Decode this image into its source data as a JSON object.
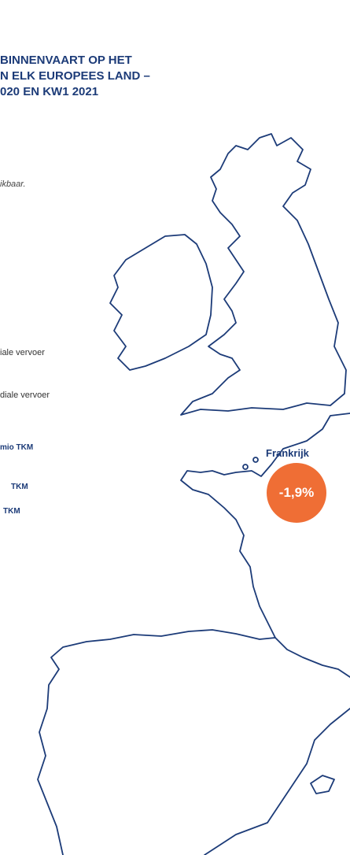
{
  "header": {
    "title_lines": [
      "BINNENVAART OP HET",
      "N ELK EUROPEES LAND –",
      "020 EN KW1 2021"
    ],
    "note": "ikbaar."
  },
  "legend": {
    "items": [
      "iale vervoer",
      "diale vervoer"
    ],
    "sizes": [
      "mio TKM",
      "TKM",
      "TKM"
    ]
  },
  "map": {
    "labels": [
      {
        "name": "Frankrijk",
        "value": "-1,9%"
      }
    ]
  }
}
